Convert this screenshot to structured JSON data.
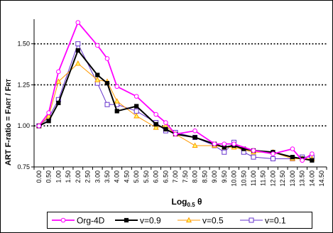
{
  "chart_data": {
    "type": "line",
    "y_axis_label": {
      "main": "ART F-ratio = F",
      "sub1": "ART",
      "sep": " / F",
      "sub2": "RT"
    },
    "x_axis_label": {
      "main": "Log",
      "sub": "0.5",
      "symbol": " θ"
    },
    "y_ticks": [
      "0.75",
      "1.00",
      "1.25",
      "1.50"
    ],
    "ylim": [
      0.75,
      1.65
    ],
    "categories": [
      "0.00",
      "0.50",
      "1.00",
      "1.50",
      "2.00",
      "2.50",
      "3.00",
      "3.50",
      "4.00",
      "4.50",
      "5.00",
      "5.50",
      "6.00",
      "6.50",
      "7.00",
      "7.50",
      "8.00",
      "8.50",
      "9.00",
      "9.50",
      "10.00",
      "10.50",
      "11.00",
      "11.50",
      "12.00",
      "12.50",
      "13.00",
      "13.50",
      "14.00",
      "14.50"
    ],
    "grid": "dotted horizontal at 1.00, 1.25, 1.50",
    "legend_position": "bottom",
    "series": [
      {
        "name": "Org-4D",
        "color": "#ff00ff",
        "marker": "circle",
        "points": [
          [
            0.0,
            1.0
          ],
          [
            0.5,
            1.08
          ],
          [
            1.0,
            1.33
          ],
          [
            2.0,
            1.63
          ],
          [
            3.0,
            1.49
          ],
          [
            3.5,
            1.41
          ],
          [
            4.0,
            1.24
          ],
          [
            5.0,
            1.18
          ],
          [
            6.0,
            1.07
          ],
          [
            6.5,
            1.02
          ],
          [
            7.0,
            0.95
          ],
          [
            8.0,
            0.97
          ],
          [
            9.0,
            0.89
          ],
          [
            9.5,
            0.89
          ],
          [
            10.0,
            0.89
          ],
          [
            11.0,
            0.85
          ],
          [
            12.0,
            0.83
          ],
          [
            13.0,
            0.86
          ],
          [
            13.5,
            0.79
          ],
          [
            14.0,
            0.83
          ]
        ]
      },
      {
        "name": "v=0.9",
        "color": "#000000",
        "marker": "square",
        "points": [
          [
            0.0,
            1.0
          ],
          [
            0.5,
            1.03
          ],
          [
            1.0,
            1.14
          ],
          [
            2.0,
            1.46
          ],
          [
            3.0,
            1.31
          ],
          [
            3.5,
            1.26
          ],
          [
            4.0,
            1.09
          ],
          [
            5.0,
            1.12
          ],
          [
            6.0,
            1.01
          ],
          [
            6.5,
            0.98
          ],
          [
            7.0,
            0.95
          ],
          [
            8.0,
            0.93
          ],
          [
            9.0,
            0.89
          ],
          [
            9.5,
            0.87
          ],
          [
            10.0,
            0.88
          ],
          [
            10.5,
            0.86
          ],
          [
            11.0,
            0.85
          ],
          [
            12.0,
            0.84
          ],
          [
            13.0,
            0.81
          ],
          [
            13.5,
            0.8
          ],
          [
            14.0,
            0.79
          ]
        ]
      },
      {
        "name": "v=0.5",
        "color": "#ff9900",
        "marker": "triangle",
        "points": [
          [
            0.0,
            1.0
          ],
          [
            0.5,
            1.06
          ],
          [
            1.0,
            1.27
          ],
          [
            2.0,
            1.38
          ],
          [
            3.0,
            1.28
          ],
          [
            3.5,
            1.27
          ],
          [
            4.0,
            1.15
          ],
          [
            5.0,
            1.06
          ],
          [
            6.0,
            0.99
          ],
          [
            6.5,
            1.0
          ],
          [
            7.0,
            0.95
          ],
          [
            8.0,
            0.88
          ],
          [
            9.0,
            0.88
          ],
          [
            9.5,
            0.87
          ],
          [
            10.0,
            0.87
          ],
          [
            11.0,
            0.84
          ],
          [
            12.0,
            0.84
          ],
          [
            13.0,
            0.8
          ],
          [
            13.5,
            0.8
          ],
          [
            14.0,
            0.8
          ]
        ]
      },
      {
        "name": "v=0.1",
        "color": "#6633cc",
        "marker": "square-open",
        "points": [
          [
            0.0,
            1.0
          ],
          [
            0.5,
            1.05
          ],
          [
            1.0,
            1.16
          ],
          [
            2.0,
            1.5
          ],
          [
            3.0,
            1.26
          ],
          [
            3.5,
            1.13
          ],
          [
            4.0,
            1.13
          ],
          [
            5.0,
            1.09
          ],
          [
            6.0,
            1.02
          ],
          [
            6.5,
            0.97
          ],
          [
            7.0,
            0.96
          ],
          [
            8.0,
            0.93
          ],
          [
            9.0,
            0.88
          ],
          [
            9.5,
            0.84
          ],
          [
            10.0,
            0.9
          ],
          [
            10.5,
            0.84
          ],
          [
            11.0,
            0.81
          ],
          [
            12.0,
            0.8
          ],
          [
            13.0,
            0.8
          ],
          [
            13.5,
            0.81
          ],
          [
            14.0,
            0.81
          ]
        ]
      }
    ]
  }
}
